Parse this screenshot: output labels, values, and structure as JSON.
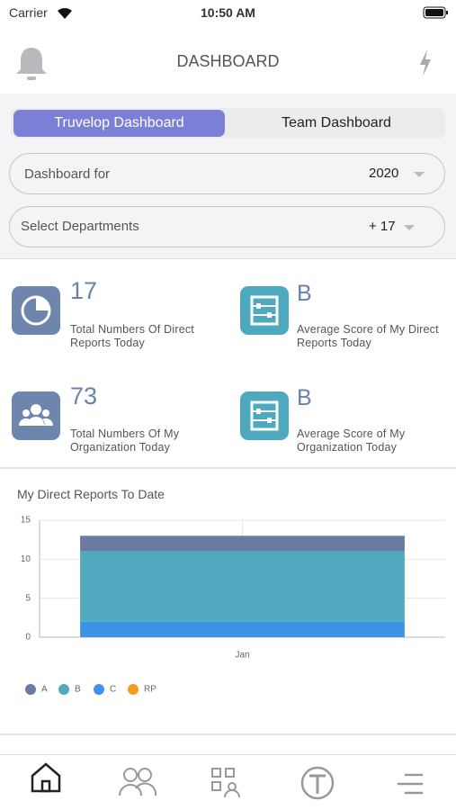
{
  "status_bar": {
    "carrier": "Carrier",
    "time": "10:50 AM"
  },
  "header": {
    "title": "DASHBOARD"
  },
  "tabs": [
    "Truvelop Dashboard",
    "Team Dashboard"
  ],
  "filters": [
    {
      "label": "Dashboard for",
      "value": "2020"
    },
    {
      "label": "Select Departments",
      "value": "+ 17"
    }
  ],
  "stats": [
    {
      "value": "17",
      "label": "Total Numbers Of Direct Reports Today"
    },
    {
      "value": "B",
      "label": "Average Score of My Direct Reports Today"
    },
    {
      "value": "73",
      "label": "Total Numbers Of My Organization Today"
    },
    {
      "value": "B",
      "label": "Average Score of My Organization Today"
    }
  ],
  "chart_data": {
    "type": "stacked_bar",
    "title": "My Direct Reports To Date",
    "categories": [
      "Jan"
    ],
    "series": [
      {
        "name": "A",
        "color": "#6a7ba3",
        "values": [
          2
        ]
      },
      {
        "name": "B",
        "color": "#52aac0",
        "values": [
          9
        ]
      },
      {
        "name": "C",
        "color": "#3d93e8",
        "values": [
          2
        ]
      },
      {
        "name": "RP",
        "color": "#f39c1e",
        "values": [
          0
        ]
      }
    ],
    "ylim": [
      0,
      15
    ],
    "yticks": [
      0,
      5,
      10,
      15
    ],
    "grid": true
  }
}
